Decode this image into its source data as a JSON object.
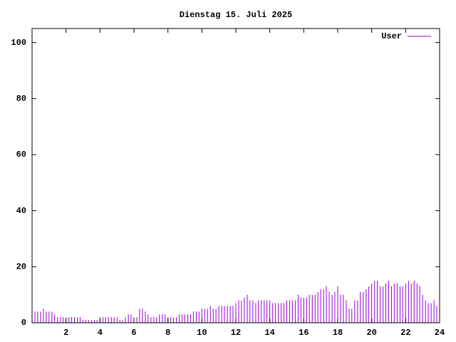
{
  "chart_data": {
    "type": "impulse",
    "title": "Dienstag 15. Juli 2025",
    "series": [
      {
        "name": "User",
        "color": "#9400d3",
        "x": [
          0,
          0.17,
          0.33,
          0.5,
          0.67,
          0.83,
          1,
          1.17,
          1.33,
          1.5,
          1.67,
          1.83,
          2,
          2.17,
          2.33,
          2.5,
          2.67,
          2.83,
          3,
          3.17,
          3.33,
          3.5,
          3.67,
          3.83,
          4,
          4.17,
          4.33,
          4.5,
          4.67,
          4.83,
          5,
          5.17,
          5.33,
          5.5,
          5.67,
          5.83,
          6,
          6.17,
          6.33,
          6.5,
          6.67,
          6.83,
          7,
          7.17,
          7.33,
          7.5,
          7.67,
          7.83,
          8,
          8.17,
          8.33,
          8.5,
          8.67,
          8.83,
          9,
          9.17,
          9.33,
          9.5,
          9.67,
          9.83,
          10,
          10.17,
          10.33,
          10.5,
          10.67,
          10.83,
          11,
          11.17,
          11.33,
          11.5,
          11.67,
          11.83,
          12,
          12.17,
          12.33,
          12.5,
          12.67,
          12.83,
          13,
          13.17,
          13.33,
          13.5,
          13.67,
          13.83,
          14,
          14.17,
          14.33,
          14.5,
          14.67,
          14.83,
          15,
          15.17,
          15.33,
          15.5,
          15.67,
          15.83,
          16,
          16.17,
          16.33,
          16.5,
          16.67,
          16.83,
          17,
          17.17,
          17.33,
          17.5,
          17.67,
          17.83,
          18,
          18.17,
          18.33,
          18.5,
          18.67,
          18.83,
          19,
          19.17,
          19.33,
          19.5,
          19.67,
          19.83,
          20,
          20.17,
          20.33,
          20.5,
          20.67,
          20.83,
          21,
          21.17,
          21.33,
          21.5,
          21.67,
          21.83,
          22,
          22.17,
          22.33,
          22.5,
          22.67,
          22.83,
          23,
          23.17,
          23.33,
          23.5,
          23.67,
          23.83
        ],
        "values": [
          4,
          4,
          4,
          4,
          5,
          4,
          4,
          4,
          3,
          2,
          2,
          2,
          2,
          2,
          2,
          2,
          2,
          2,
          1,
          1,
          1,
          1,
          1,
          1,
          2,
          2,
          2,
          2,
          2,
          2,
          2,
          1,
          1,
          2,
          3,
          3,
          2,
          2,
          5,
          5,
          4,
          3,
          2,
          2,
          2,
          3,
          3,
          3,
          2,
          2,
          2,
          2,
          3,
          3,
          3,
          3,
          3,
          4,
          4,
          4,
          5,
          5,
          5,
          6,
          5,
          5,
          6,
          6,
          6,
          6,
          6,
          6,
          7,
          8,
          8,
          9,
          10,
          8,
          8,
          7,
          8,
          8,
          8,
          8,
          8,
          7,
          7,
          7,
          7,
          7,
          8,
          8,
          8,
          8,
          10,
          9,
          9,
          9,
          10,
          10,
          10,
          11,
          12,
          12,
          13,
          11,
          10,
          11,
          13,
          10,
          10,
          8,
          5,
          5,
          8,
          8,
          11,
          11,
          12,
          13,
          14,
          15,
          15,
          13,
          13,
          14,
          15,
          13,
          14,
          14,
          13,
          13,
          14,
          15,
          14,
          15,
          14,
          13,
          10,
          8,
          7,
          7,
          8,
          6
        ]
      }
    ],
    "xlim": [
      0,
      24
    ],
    "xticks": [
      2,
      4,
      6,
      8,
      10,
      12,
      14,
      16,
      18,
      20,
      22,
      24
    ],
    "ylim": [
      0,
      105
    ],
    "yticks": [
      0,
      20,
      40,
      60,
      80,
      100
    ],
    "legend": "upper right"
  }
}
